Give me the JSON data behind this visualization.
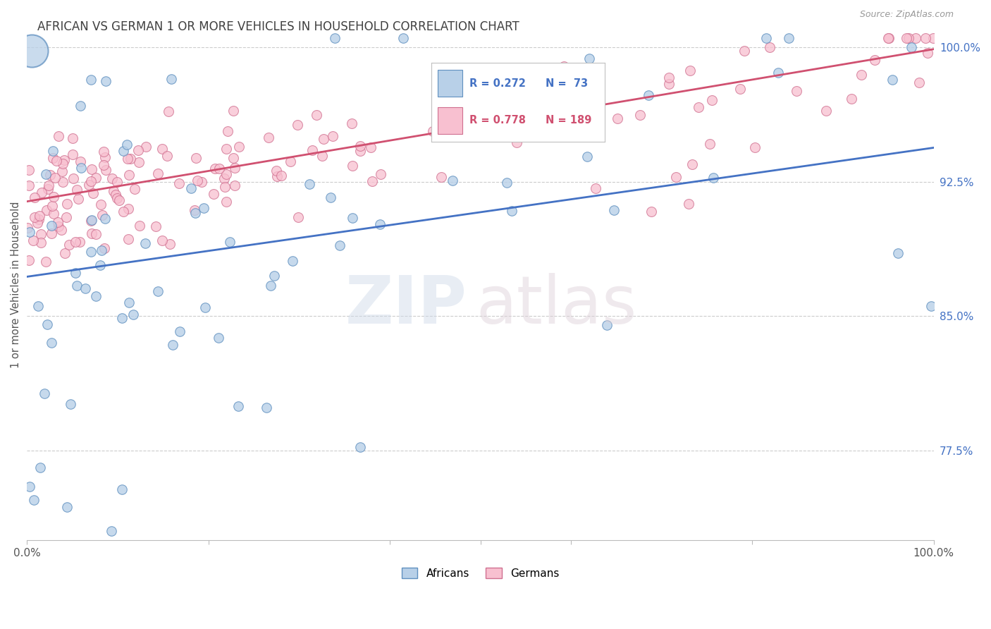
{
  "title": "AFRICAN VS GERMAN 1 OR MORE VEHICLES IN HOUSEHOLD CORRELATION CHART",
  "source": "Source: ZipAtlas.com",
  "ylabel": "1 or more Vehicles in Household",
  "background_color": "#ffffff",
  "grid_color": "#cccccc",
  "african_color": "#b8d0e8",
  "african_edge_color": "#6090c0",
  "german_color": "#f8c0d0",
  "german_edge_color": "#d07090",
  "african_line_color": "#4472c4",
  "german_line_color": "#d05070",
  "ytick_color": "#4472c4",
  "title_color": "#404040",
  "title_fontsize": 12,
  "yticks": [
    0.775,
    0.85,
    0.925,
    1.0
  ],
  "ytick_labels": [
    "77.5%",
    "85.0%",
    "92.5%",
    "100.0%"
  ],
  "xlim": [
    0.0,
    1.0
  ],
  "ylim": [
    0.725,
    1.01
  ],
  "blue_line_x0": 0.0,
  "blue_line_y0": 0.872,
  "blue_line_x1": 1.0,
  "blue_line_y1": 0.944,
  "pink_line_x0": 0.0,
  "pink_line_y0": 0.914,
  "pink_line_x1": 1.0,
  "pink_line_y1": 0.999
}
